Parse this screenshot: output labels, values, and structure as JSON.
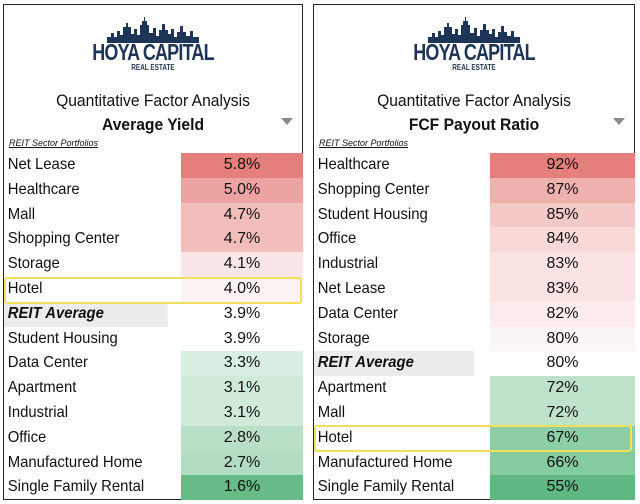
{
  "logo": {
    "brand": "HOYA CAPITAL",
    "sub": "REAL ESTATE"
  },
  "panels": [
    {
      "title": "Quantitative Factor Analysis",
      "factor": "Average Yield",
      "section_label": "REIT Sector Portfolios",
      "highlighted": "Hotel",
      "rows": [
        {
          "name": "Net Lease",
          "value": "5.8%",
          "color": "#e57f7b"
        },
        {
          "name": "Healthcare",
          "value": "5.0%",
          "color": "#eda3a1"
        },
        {
          "name": "Mall",
          "value": "4.7%",
          "color": "#f2bebc"
        },
        {
          "name": "Shopping Center",
          "value": "4.7%",
          "color": "#f2bebc"
        },
        {
          "name": "Storage",
          "value": "4.1%",
          "color": "#fbe7e7"
        },
        {
          "name": "Hotel",
          "value": "4.0%",
          "color": "#fdf3f3"
        },
        {
          "name": "REIT Average",
          "value": "3.9%",
          "color": "#ffffff",
          "avg": true
        },
        {
          "name": "Student Housing",
          "value": "3.9%",
          "color": "#ffffff"
        },
        {
          "name": "Data Center",
          "value": "3.3%",
          "color": "#d9efe2"
        },
        {
          "name": "Apartment",
          "value": "3.1%",
          "color": "#cfead9"
        },
        {
          "name": "Industrial",
          "value": "3.1%",
          "color": "#cfead9"
        },
        {
          "name": "Office",
          "value": "2.8%",
          "color": "#b9e0c7"
        },
        {
          "name": "Manufactured Home",
          "value": "2.7%",
          "color": "#b2ddc2"
        },
        {
          "name": "Single Family Rental",
          "value": "1.6%",
          "color": "#66bb86"
        }
      ]
    },
    {
      "title": "Quantitative Factor Analysis",
      "factor": "FCF Payout Ratio",
      "section_label": "REIT Sector Portfolios",
      "highlighted": "Hotel",
      "rows": [
        {
          "name": "Healthcare",
          "value": "92%",
          "color": "#e57f7b"
        },
        {
          "name": "Shopping Center",
          "value": "87%",
          "color": "#efb1ae"
        },
        {
          "name": "Student Housing",
          "value": "85%",
          "color": "#f4c9c7"
        },
        {
          "name": "Office",
          "value": "84%",
          "color": "#f8d9d8"
        },
        {
          "name": "Industrial",
          "value": "83%",
          "color": "#fae3e2"
        },
        {
          "name": "Net Lease",
          "value": "83%",
          "color": "#fae3e2"
        },
        {
          "name": "Data Center",
          "value": "82%",
          "color": "#fcecec"
        },
        {
          "name": "Storage",
          "value": "80%",
          "color": "#fdf6f6"
        },
        {
          "name": "REIT Average",
          "value": "80%",
          "color": "#ffffff",
          "avg": true
        },
        {
          "name": "Apartment",
          "value": "72%",
          "color": "#bfe2cb"
        },
        {
          "name": "Mall",
          "value": "72%",
          "color": "#bfe2cb"
        },
        {
          "name": "Hotel",
          "value": "67%",
          "color": "#8ccea6"
        },
        {
          "name": "Manufactured Home",
          "value": "66%",
          "color": "#85cba0"
        },
        {
          "name": "Single Family Rental",
          "value": "55%",
          "color": "#5fb882"
        }
      ]
    }
  ]
}
